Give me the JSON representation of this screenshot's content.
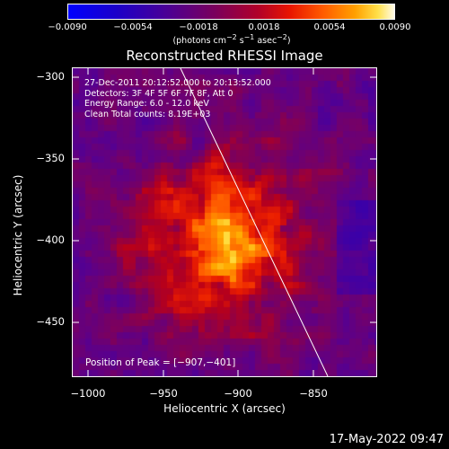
{
  "colorbar": {
    "ticks": [
      "−0.0090",
      "−0.0054",
      "−0.0018",
      "0.0018",
      "0.0054",
      "0.0090"
    ],
    "units_html": "(photons cm<sup>−2</sup> s<sup>−1</sup> asec<sup>−2</sup>)"
  },
  "plot": {
    "title": "Reconstructed RHESSI Image",
    "xlabel": "Heliocentric X (arcsec)",
    "ylabel": "Heliocentric Y (arcsec)",
    "xticks": [
      "−1000",
      "−950",
      "−900",
      "−850"
    ],
    "yticks": [
      "−300",
      "−350",
      "−400",
      "−450"
    ],
    "info": [
      "27-Dec-2011 20:12:52.000 to 20:13:52.000",
      "Detectors: 3F 4F 5F 6F 7F 8F, Att 0",
      "Energy Range: 6.0 - 12.0 keV",
      "Clean     Total counts: 8.19E+03"
    ],
    "peak_label": "Position of Peak = [−907,−401]"
  },
  "footer": {
    "date": "17-May-2022 09:47"
  }
}
